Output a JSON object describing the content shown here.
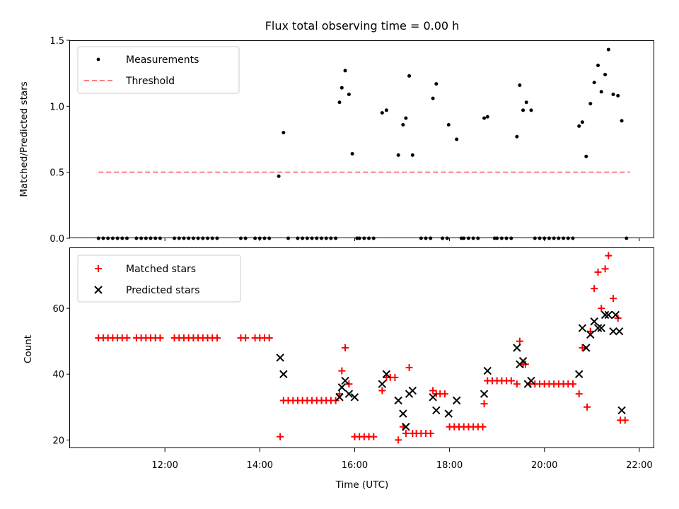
{
  "chart_data": [
    {
      "type": "scatter",
      "title": "Flux total observing time = 0.00 h",
      "xlabel": "",
      "ylabel": "Matched/Predicted stars",
      "xlim_hours": [
        10.0,
        22.3
      ],
      "ylim": [
        0,
        1.5
      ],
      "y_ticks": [
        "0.0",
        "0.5",
        "1.0",
        "1.5"
      ],
      "legend": {
        "placement": "upper-left",
        "entries": [
          "Measurements",
          "Threshold"
        ]
      },
      "threshold": {
        "name": "Threshold",
        "value": 0.5,
        "x_range_hours": [
          10.6,
          21.8
        ],
        "color": "#ff7f7f"
      },
      "series": [
        {
          "name": "Measurements",
          "color": "#000000",
          "points": [
            [
              10.6,
              0
            ],
            [
              10.7,
              0
            ],
            [
              10.8,
              0
            ],
            [
              10.9,
              0
            ],
            [
              11.0,
              0
            ],
            [
              11.1,
              0
            ],
            [
              11.2,
              0
            ],
            [
              11.4,
              0
            ],
            [
              11.5,
              0
            ],
            [
              11.6,
              0
            ],
            [
              11.7,
              0
            ],
            [
              11.8,
              0
            ],
            [
              11.9,
              0
            ],
            [
              12.2,
              0
            ],
            [
              12.3,
              0
            ],
            [
              12.4,
              0
            ],
            [
              12.5,
              0
            ],
            [
              12.6,
              0
            ],
            [
              12.7,
              0
            ],
            [
              12.8,
              0
            ],
            [
              12.9,
              0
            ],
            [
              13.0,
              0
            ],
            [
              13.1,
              0
            ],
            [
              13.6,
              0
            ],
            [
              13.7,
              0
            ],
            [
              13.9,
              0
            ],
            [
              14.0,
              0
            ],
            [
              14.1,
              0
            ],
            [
              14.2,
              0
            ],
            [
              14.4,
              0.47
            ],
            [
              14.5,
              0.8
            ],
            [
              14.6,
              0
            ],
            [
              14.8,
              0
            ],
            [
              14.9,
              0
            ],
            [
              15.0,
              0
            ],
            [
              15.1,
              0
            ],
            [
              15.2,
              0
            ],
            [
              15.3,
              0
            ],
            [
              15.4,
              0
            ],
            [
              15.5,
              0
            ],
            [
              15.6,
              0
            ],
            [
              15.68,
              1.03
            ],
            [
              15.73,
              1.14
            ],
            [
              15.8,
              1.27
            ],
            [
              15.88,
              1.09
            ],
            [
              15.95,
              0.64
            ],
            [
              16.05,
              0
            ],
            [
              16.1,
              0
            ],
            [
              16.2,
              0
            ],
            [
              16.3,
              0
            ],
            [
              16.4,
              0
            ],
            [
              16.58,
              0.95
            ],
            [
              16.67,
              0.97
            ],
            [
              16.92,
              0.63
            ],
            [
              17.02,
              0.86
            ],
            [
              17.08,
              0.91
            ],
            [
              17.15,
              1.23
            ],
            [
              17.22,
              0.63
            ],
            [
              17.4,
              0
            ],
            [
              17.5,
              0
            ],
            [
              17.6,
              0
            ],
            [
              17.65,
              1.06
            ],
            [
              17.72,
              1.17
            ],
            [
              17.85,
              0
            ],
            [
              17.95,
              0
            ],
            [
              17.98,
              0.86
            ],
            [
              18.15,
              0.75
            ],
            [
              18.25,
              0
            ],
            [
              18.3,
              0
            ],
            [
              18.4,
              0
            ],
            [
              18.5,
              0
            ],
            [
              18.6,
              0
            ],
            [
              18.73,
              0.91
            ],
            [
              18.8,
              0.92
            ],
            [
              18.95,
              0
            ],
            [
              19.0,
              0
            ],
            [
              19.1,
              0
            ],
            [
              19.2,
              0
            ],
            [
              19.3,
              0
            ],
            [
              19.42,
              0.77
            ],
            [
              19.48,
              1.16
            ],
            [
              19.55,
              0.97
            ],
            [
              19.62,
              1.03
            ],
            [
              19.72,
              0.97
            ],
            [
              19.8,
              0
            ],
            [
              19.9,
              0
            ],
            [
              20.0,
              0
            ],
            [
              20.1,
              0
            ],
            [
              20.2,
              0
            ],
            [
              20.3,
              0
            ],
            [
              20.4,
              0
            ],
            [
              20.5,
              0
            ],
            [
              20.6,
              0
            ],
            [
              20.73,
              0.85
            ],
            [
              20.8,
              0.88
            ],
            [
              20.88,
              0.62
            ],
            [
              20.97,
              1.02
            ],
            [
              21.05,
              1.18
            ],
            [
              21.13,
              1.31
            ],
            [
              21.2,
              1.11
            ],
            [
              21.28,
              1.24
            ],
            [
              21.35,
              1.43
            ],
            [
              21.45,
              1.09
            ],
            [
              21.55,
              1.08
            ],
            [
              21.63,
              0.89
            ],
            [
              21.73,
              0
            ]
          ]
        }
      ]
    },
    {
      "type": "scatter",
      "title": "",
      "xlabel": "Time (UTC)",
      "ylabel": "Count",
      "xlim_hours": [
        10.0,
        22.3
      ],
      "ylim": [
        17.5,
        78.5
      ],
      "y_ticks": [
        "20",
        "40",
        "60"
      ],
      "x_ticks": [
        "12:00",
        "14:00",
        "16:00",
        "18:00",
        "20:00",
        "22:00"
      ],
      "legend": {
        "placement": "upper-left",
        "entries": [
          "Matched stars",
          "Predicted stars"
        ]
      },
      "series": [
        {
          "name": "Matched stars",
          "marker": "+",
          "color": "#ff0000",
          "points": [
            [
              10.6,
              51
            ],
            [
              10.7,
              51
            ],
            [
              10.8,
              51
            ],
            [
              10.9,
              51
            ],
            [
              11.0,
              51
            ],
            [
              11.1,
              51
            ],
            [
              11.2,
              51
            ],
            [
              11.4,
              51
            ],
            [
              11.5,
              51
            ],
            [
              11.6,
              51
            ],
            [
              11.7,
              51
            ],
            [
              11.8,
              51
            ],
            [
              11.9,
              51
            ],
            [
              12.2,
              51
            ],
            [
              12.3,
              51
            ],
            [
              12.4,
              51
            ],
            [
              12.5,
              51
            ],
            [
              12.6,
              51
            ],
            [
              12.7,
              51
            ],
            [
              12.8,
              51
            ],
            [
              12.9,
              51
            ],
            [
              13.0,
              51
            ],
            [
              13.1,
              51
            ],
            [
              13.6,
              51
            ],
            [
              13.7,
              51
            ],
            [
              13.9,
              51
            ],
            [
              14.0,
              51
            ],
            [
              14.1,
              51
            ],
            [
              14.2,
              51
            ],
            [
              14.43,
              21
            ],
            [
              14.5,
              32
            ],
            [
              14.6,
              32
            ],
            [
              14.7,
              32
            ],
            [
              14.8,
              32
            ],
            [
              14.9,
              32
            ],
            [
              15.0,
              32
            ],
            [
              15.1,
              32
            ],
            [
              15.2,
              32
            ],
            [
              15.3,
              32
            ],
            [
              15.4,
              32
            ],
            [
              15.5,
              32
            ],
            [
              15.6,
              32
            ],
            [
              15.68,
              34
            ],
            [
              15.73,
              41
            ],
            [
              15.8,
              48
            ],
            [
              15.88,
              37
            ],
            [
              16.0,
              21
            ],
            [
              16.1,
              21
            ],
            [
              16.2,
              21
            ],
            [
              16.3,
              21
            ],
            [
              16.4,
              21
            ],
            [
              16.58,
              35
            ],
            [
              16.67,
              39
            ],
            [
              16.75,
              39
            ],
            [
              16.85,
              39
            ],
            [
              16.92,
              20
            ],
            [
              17.02,
              24
            ],
            [
              17.08,
              22
            ],
            [
              17.15,
              42
            ],
            [
              17.22,
              22
            ],
            [
              17.3,
              22
            ],
            [
              17.4,
              22
            ],
            [
              17.5,
              22
            ],
            [
              17.6,
              22
            ],
            [
              17.65,
              35
            ],
            [
              17.72,
              34
            ],
            [
              17.8,
              34
            ],
            [
              17.9,
              34
            ],
            [
              18.0,
              24
            ],
            [
              18.1,
              24
            ],
            [
              18.2,
              24
            ],
            [
              18.3,
              24
            ],
            [
              18.4,
              24
            ],
            [
              18.5,
              24
            ],
            [
              18.6,
              24
            ],
            [
              18.7,
              24
            ],
            [
              18.73,
              31
            ],
            [
              18.8,
              38
            ],
            [
              18.9,
              38
            ],
            [
              19.0,
              38
            ],
            [
              19.1,
              38
            ],
            [
              19.2,
              38
            ],
            [
              19.3,
              38
            ],
            [
              19.42,
              37
            ],
            [
              19.48,
              50
            ],
            [
              19.55,
              43
            ],
            [
              19.6,
              43
            ],
            [
              19.7,
              37
            ],
            [
              19.8,
              37
            ],
            [
              19.9,
              37
            ],
            [
              20.0,
              37
            ],
            [
              20.1,
              37
            ],
            [
              20.2,
              37
            ],
            [
              20.3,
              37
            ],
            [
              20.4,
              37
            ],
            [
              20.5,
              37
            ],
            [
              20.6,
              37
            ],
            [
              20.73,
              34
            ],
            [
              20.8,
              48
            ],
            [
              20.9,
              30
            ],
            [
              20.97,
              53
            ],
            [
              21.05,
              66
            ],
            [
              21.13,
              71
            ],
            [
              21.2,
              60
            ],
            [
              21.28,
              72
            ],
            [
              21.35,
              76
            ],
            [
              21.45,
              63
            ],
            [
              21.55,
              57
            ],
            [
              21.6,
              26
            ],
            [
              21.7,
              26
            ]
          ]
        },
        {
          "name": "Predicted stars",
          "marker": "x",
          "color": "#000000",
          "points": [
            [
              14.43,
              45
            ],
            [
              14.5,
              40
            ],
            [
              15.68,
              33
            ],
            [
              15.73,
              36
            ],
            [
              15.8,
              38
            ],
            [
              15.88,
              34
            ],
            [
              16.0,
              33
            ],
            [
              16.58,
              37
            ],
            [
              16.67,
              40
            ],
            [
              16.92,
              32
            ],
            [
              17.02,
              28
            ],
            [
              17.08,
              24
            ],
            [
              17.15,
              34
            ],
            [
              17.22,
              35
            ],
            [
              17.65,
              33
            ],
            [
              17.72,
              29
            ],
            [
              17.98,
              28
            ],
            [
              18.15,
              32
            ],
            [
              18.73,
              34
            ],
            [
              18.8,
              41
            ],
            [
              19.42,
              48
            ],
            [
              19.48,
              43
            ],
            [
              19.55,
              44
            ],
            [
              19.65,
              37
            ],
            [
              19.72,
              38
            ],
            [
              20.73,
              40
            ],
            [
              20.8,
              54
            ],
            [
              20.88,
              48
            ],
            [
              20.97,
              52
            ],
            [
              21.05,
              56
            ],
            [
              21.13,
              54
            ],
            [
              21.2,
              54
            ],
            [
              21.28,
              58
            ],
            [
              21.35,
              58
            ],
            [
              21.45,
              53
            ],
            [
              21.5,
              58
            ],
            [
              21.58,
              53
            ],
            [
              21.63,
              29
            ]
          ]
        }
      ]
    }
  ]
}
